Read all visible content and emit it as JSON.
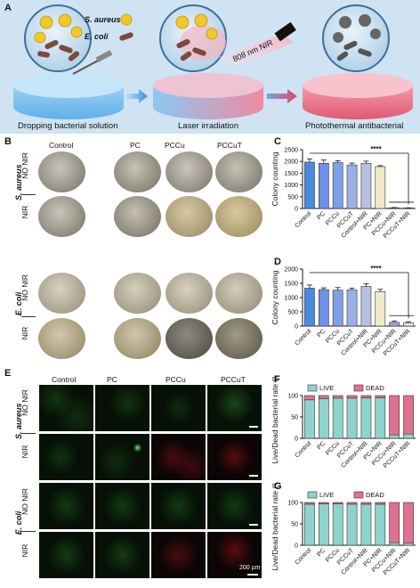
{
  "panel_labels": {
    "A": "A",
    "B": "B",
    "C": "C",
    "D": "D",
    "E": "E",
    "F": "F",
    "G": "G"
  },
  "panel_a": {
    "legend_sa": "S. aureus",
    "legend_ec": "E. coli",
    "laser": "808 nm NIR",
    "step1": "Dropping bacterial solution",
    "step2": "Laser irradiation",
    "step3": "Photothermal antibacterial"
  },
  "groups": [
    "Control",
    "PC",
    "PCCu",
    "PCCuT"
  ],
  "rows": {
    "no_nir": "NO NIR",
    "nir": "NIR",
    "s_aureus": "S. aureus",
    "e_coli": "E. coli"
  },
  "scale_bar": "200 µm",
  "colors": {
    "control": "#4a8be0",
    "pc": "#6f8fe8",
    "pccu": "#7f9fe6",
    "pccut": "#9ab0e6",
    "control_nir": "#b7c0e0",
    "pc_nir": "#efeac9",
    "pccu_nir": "#a89cd0",
    "pccut_nir": "#f2dbe5",
    "live": "#8fd3cf",
    "dead": "#e2718f"
  },
  "chart_data": [
    {
      "type": "bar",
      "panel": "C",
      "ylabel": "Colony counting",
      "categories": [
        "Control",
        "PC",
        "PCCu",
        "PCCuT",
        "Control+NIR",
        "PC+NIR",
        "PCCu+NIR",
        "PCCuT+NIR"
      ],
      "values": [
        1970,
        1920,
        1950,
        1850,
        1920,
        1780,
        30,
        20
      ],
      "errors": [
        130,
        140,
        80,
        80,
        90,
        40,
        10,
        8
      ],
      "ylim": [
        0,
        2500
      ],
      "yticks": [
        0,
        500,
        1000,
        1500,
        2000,
        2500
      ],
      "significance": "****"
    },
    {
      "type": "bar",
      "panel": "D",
      "ylabel": "Colony counting",
      "categories": [
        "Control",
        "PC",
        "PCCu",
        "PCCuT",
        "Control+NIR",
        "PC+NIR",
        "PCCu+NIR",
        "PCCuT+NIR"
      ],
      "values": [
        1330,
        1280,
        1260,
        1270,
        1390,
        1210,
        130,
        120
      ],
      "errors": [
        110,
        60,
        90,
        60,
        100,
        80,
        50,
        30
      ],
      "ylim": [
        0,
        2000
      ],
      "yticks": [
        0,
        500,
        1000,
        1500,
        2000
      ],
      "significance": "****"
    },
    {
      "type": "bar",
      "panel": "F",
      "stacked": true,
      "ylabel": "Live/Dead bacterial rate (%)",
      "categories": [
        "Control",
        "PC",
        "PCCu",
        "PCCuT",
        "Control+NIR",
        "PC+NIR",
        "PCCu+NIR",
        "PCCuT+NIR"
      ],
      "series": [
        {
          "name": "LIVE",
          "values": [
            90,
            93,
            94,
            94,
            95,
            95,
            8,
            10
          ]
        },
        {
          "name": "DEAD",
          "values": [
            10,
            7,
            6,
            6,
            5,
            5,
            92,
            90
          ]
        }
      ],
      "ylim": [
        0,
        100
      ],
      "yticks": [
        0,
        50,
        100
      ]
    },
    {
      "type": "bar",
      "panel": "G",
      "stacked": true,
      "ylabel": "Live/Dead bacterial rate (%)",
      "categories": [
        "Control",
        "PC",
        "PCCu",
        "PCCuT",
        "Control+NIR",
        "PC+NIR",
        "PCCu+NIR",
        "PCCuT+NIR"
      ],
      "series": [
        {
          "name": "LIVE",
          "values": [
            96,
            97,
            97,
            96,
            96,
            96,
            6,
            5
          ]
        },
        {
          "name": "DEAD",
          "values": [
            4,
            3,
            3,
            4,
            4,
            4,
            94,
            95
          ]
        }
      ],
      "ylim": [
        0,
        100
      ],
      "yticks": [
        0,
        50,
        100
      ]
    }
  ]
}
